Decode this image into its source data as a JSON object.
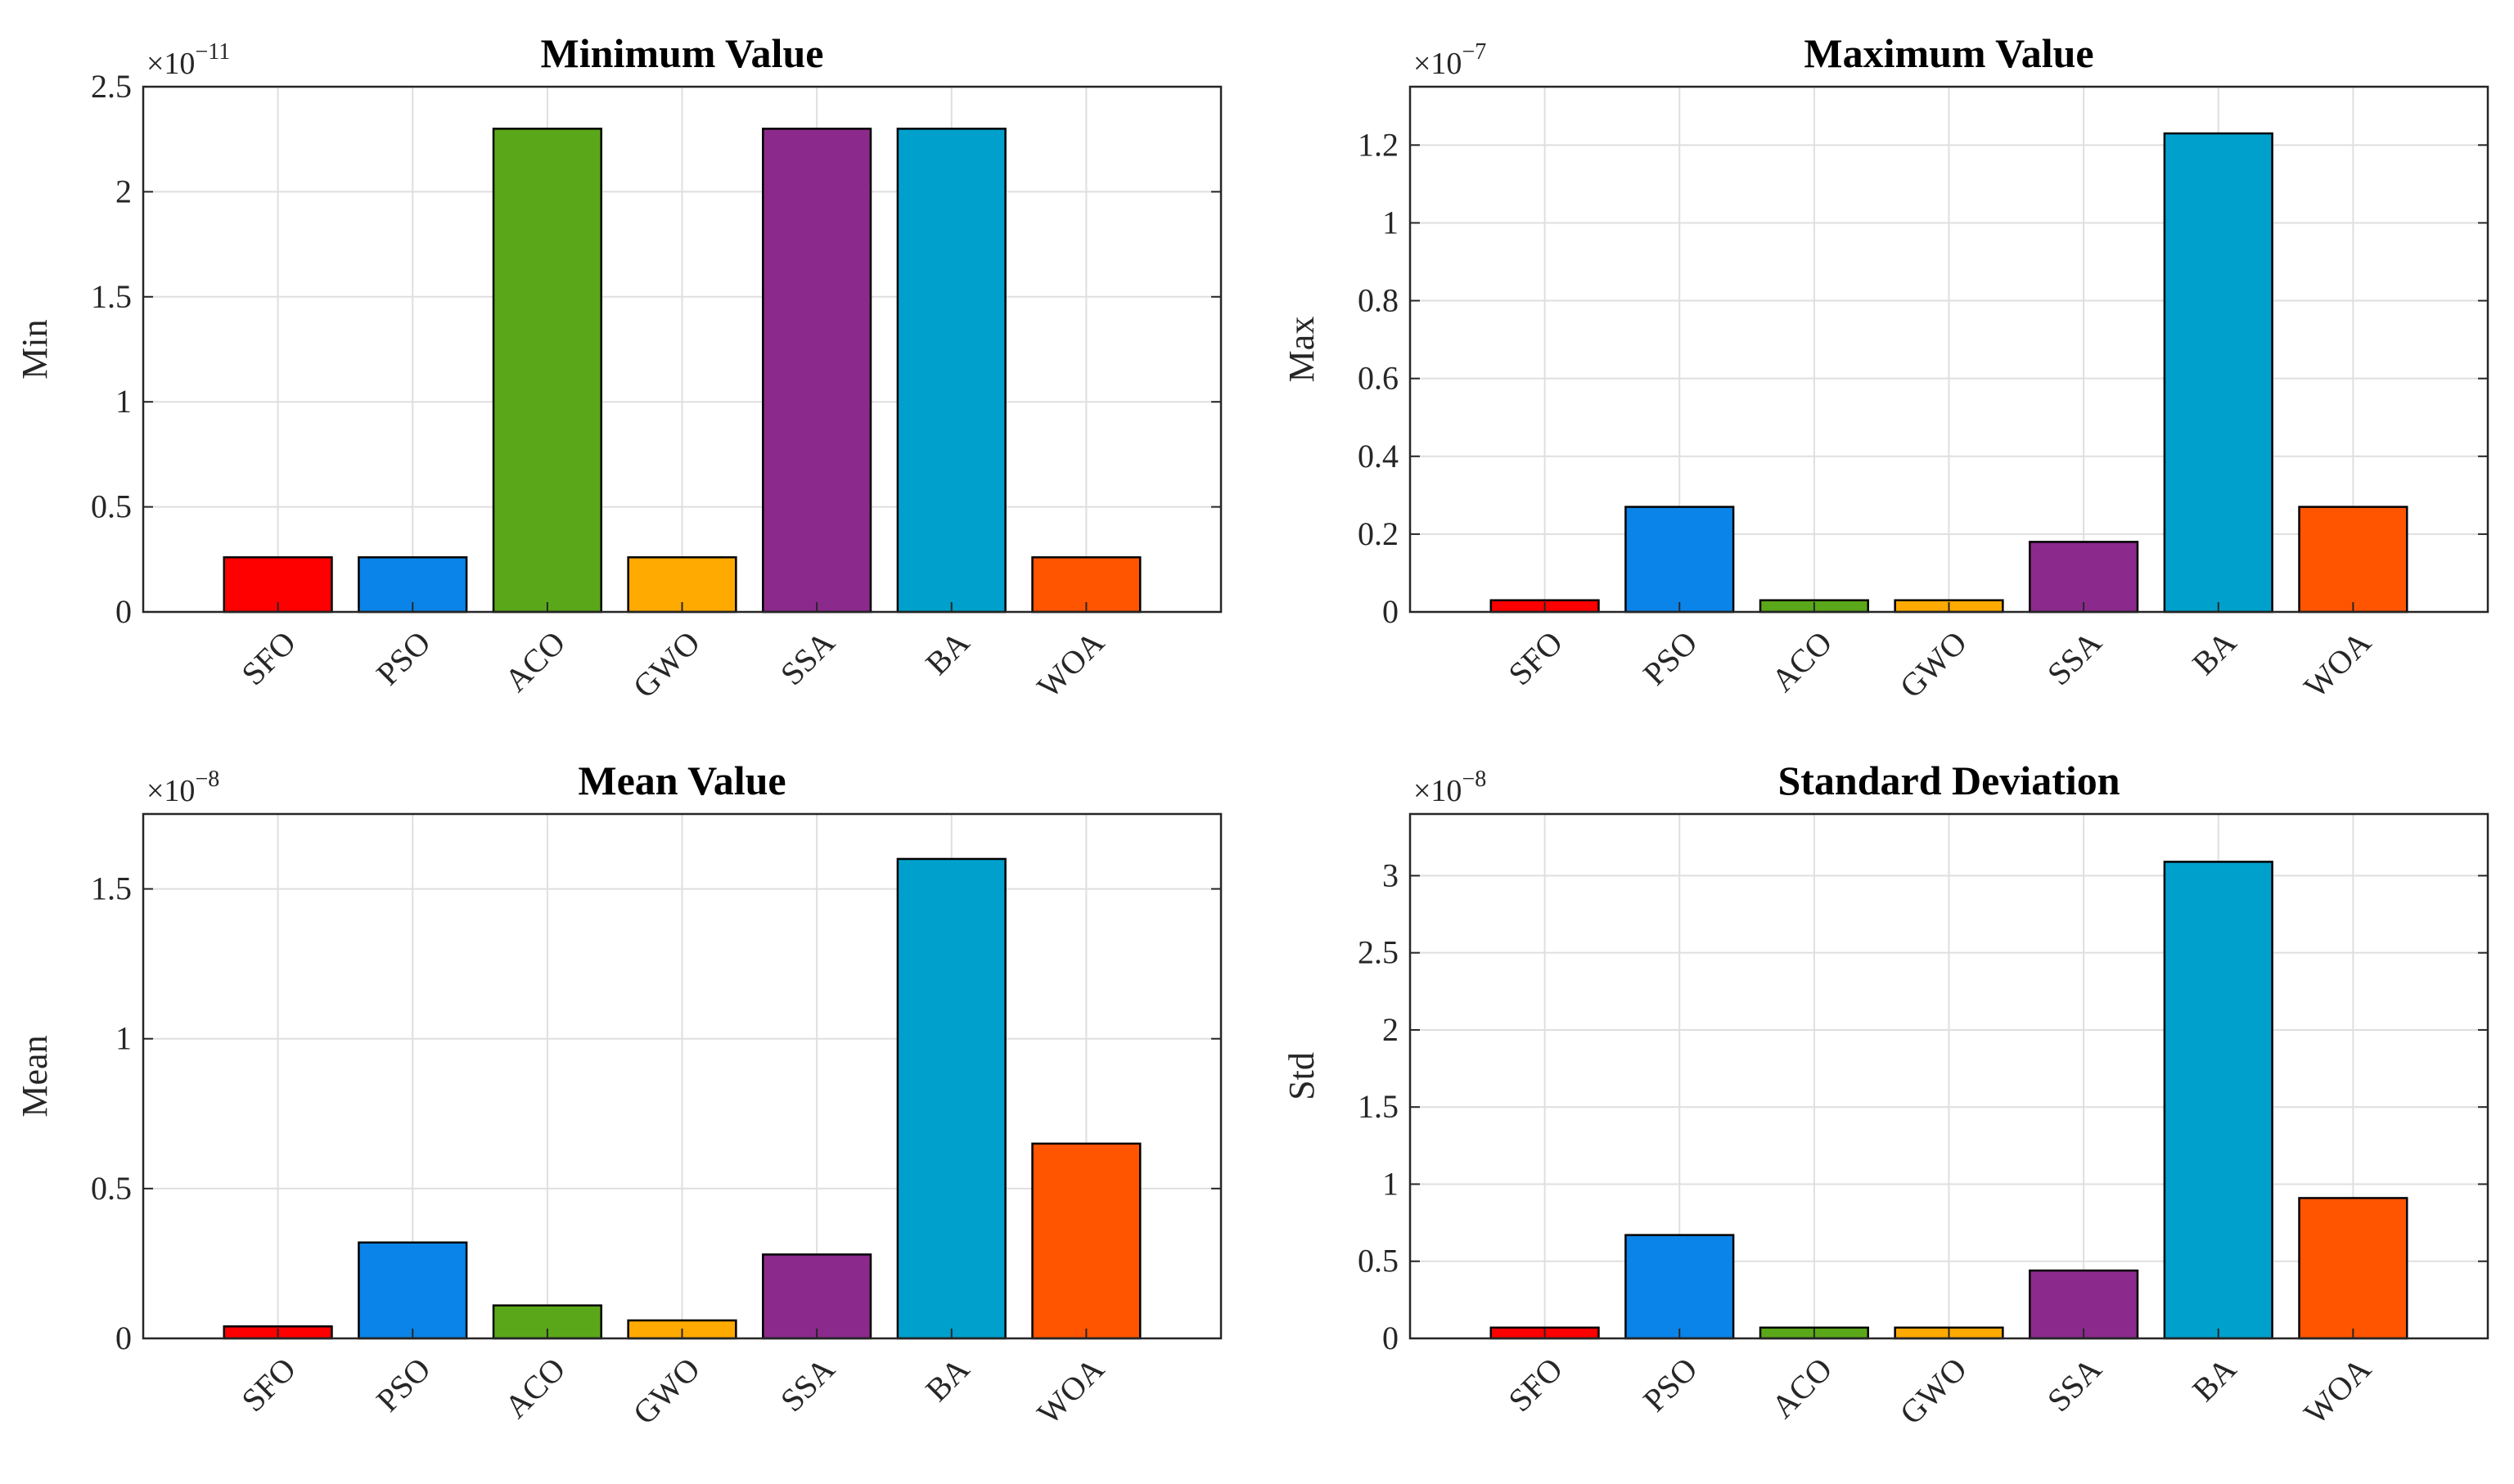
{
  "chart_data": [
    {
      "type": "bar",
      "title": "Minimum Value",
      "ylabel": "Min",
      "exponent_label": "×10",
      "exponent_power": "−11",
      "categories": [
        "SFO",
        "PSO",
        "ACO",
        "GWO",
        "SSA",
        "BA",
        "WOA"
      ],
      "values": [
        0.26,
        0.26,
        2.3,
        0.26,
        2.3,
        2.3,
        0.26
      ],
      "colors": [
        "#ff0000",
        "#0a84e8",
        "#5aa81a",
        "#ffaa00",
        "#8b2a8c",
        "#00a0cc",
        "#ff5500"
      ],
      "ylim": [
        0,
        2.5
      ],
      "yticks": [
        0,
        0.5,
        1,
        1.5,
        2,
        2.5
      ],
      "ytick_labels": [
        "0",
        "0.5",
        "1",
        "1.5",
        "2",
        "2.5"
      ],
      "grid": true
    },
    {
      "type": "bar",
      "title": "Maximum Value",
      "ylabel": "Max",
      "exponent_label": "×10",
      "exponent_power": "−7",
      "categories": [
        "SFO",
        "PSO",
        "ACO",
        "GWO",
        "SSA",
        "BA",
        "WOA"
      ],
      "values": [
        0.03,
        0.27,
        0.03,
        0.03,
        0.18,
        1.23,
        0.27
      ],
      "colors": [
        "#ff0000",
        "#0a84e8",
        "#5aa81a",
        "#ffaa00",
        "#8b2a8c",
        "#00a0cc",
        "#ff5500"
      ],
      "ylim": [
        0,
        1.35
      ],
      "yticks": [
        0,
        0.2,
        0.4,
        0.6,
        0.8,
        1,
        1.2
      ],
      "ytick_labels": [
        "0",
        "0.2",
        "0.4",
        "0.6",
        "0.8",
        "1",
        "1.2"
      ],
      "grid": true
    },
    {
      "type": "bar",
      "title": "Mean Value",
      "ylabel": "Mean",
      "exponent_label": "×10",
      "exponent_power": "−8",
      "categories": [
        "SFO",
        "PSO",
        "ACO",
        "GWO",
        "SSA",
        "BA",
        "WOA"
      ],
      "values": [
        0.04,
        0.32,
        0.11,
        0.06,
        0.28,
        1.6,
        0.65
      ],
      "colors": [
        "#ff0000",
        "#0a84e8",
        "#5aa81a",
        "#ffaa00",
        "#8b2a8c",
        "#00a0cc",
        "#ff5500"
      ],
      "ylim": [
        0,
        1.75
      ],
      "yticks": [
        0,
        0.5,
        1,
        1.5
      ],
      "ytick_labels": [
        "0",
        "0.5",
        "1",
        "1.5"
      ],
      "grid": true
    },
    {
      "type": "bar",
      "title": "Standard Deviation",
      "ylabel": "Std",
      "exponent_label": "×10",
      "exponent_power": "−8",
      "categories": [
        "SFO",
        "PSO",
        "ACO",
        "GWO",
        "SSA",
        "BA",
        "WOA"
      ],
      "values": [
        0.07,
        0.67,
        0.07,
        0.07,
        0.44,
        3.09,
        0.91
      ],
      "colors": [
        "#ff0000",
        "#0a84e8",
        "#5aa81a",
        "#ffaa00",
        "#8b2a8c",
        "#00a0cc",
        "#ff5500"
      ],
      "ylim": [
        0,
        3.4
      ],
      "yticks": [
        0,
        0.5,
        1,
        1.5,
        2,
        2.5,
        3
      ],
      "ytick_labels": [
        "0",
        "0.5",
        "1",
        "1.5",
        "2",
        "2.5",
        "3"
      ],
      "grid": true
    }
  ]
}
